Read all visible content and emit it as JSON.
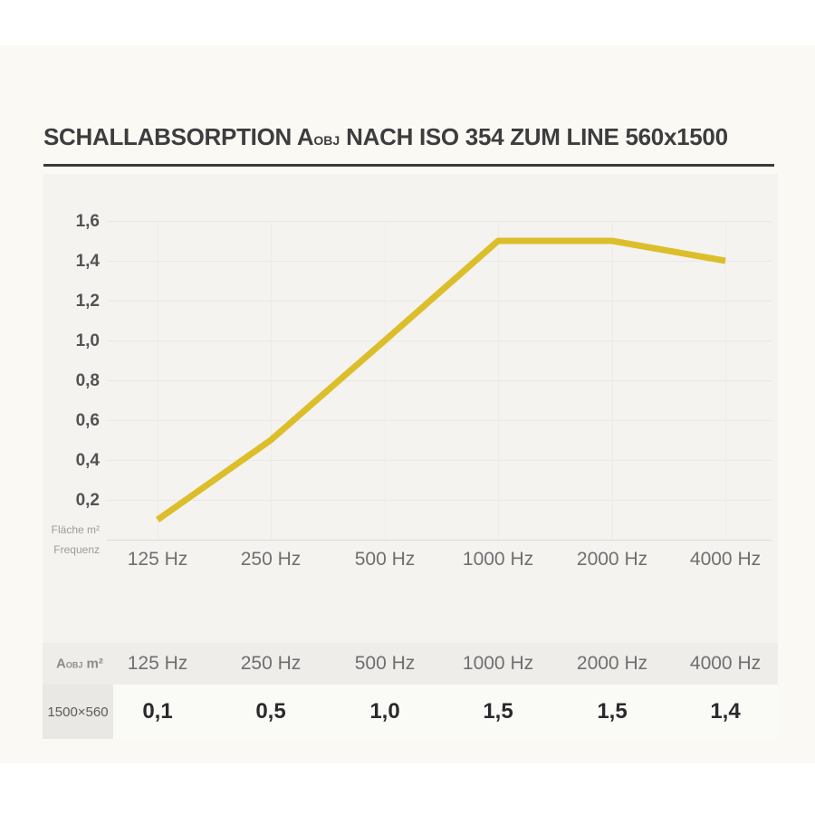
{
  "page": {
    "title_prefix": "SCHALLABSORPTION A",
    "title_sub": "OBJ",
    "title_suffix": " NACH ISO 354 ZUM LINE 560x1500"
  },
  "chart_data": {
    "type": "line",
    "title": "Schallabsorption Aobj nach ISO 354 zum LINE 560x1500",
    "categories": [
      "125 Hz",
      "250 Hz",
      "500 Hz",
      "1000 Hz",
      "2000 Hz",
      "4000 Hz"
    ],
    "series": [
      {
        "name": "Aobj m² (1500×560)",
        "values": [
          0.1,
          0.5,
          1.0,
          1.5,
          1.5,
          1.4
        ]
      }
    ],
    "xlabel": "Frequenz",
    "ylabel": "Fläche m²",
    "ylim": [
      0,
      1.6
    ],
    "ytick_labels": [
      "1,6",
      "1,4",
      "1,2",
      "1,0",
      "0,8",
      "0,6",
      "0,4",
      "0,2"
    ],
    "ytick_values": [
      1.6,
      1.4,
      1.2,
      1.0,
      0.8,
      0.6,
      0.4,
      0.2
    ],
    "grid": true,
    "legend_position": "none",
    "line_color": "#dcbe2b",
    "axis_caption_area": "Fläche m²",
    "axis_caption_freq": "Frequenz"
  },
  "table": {
    "header_label_prefix": "A",
    "header_label_sub": "OBJ",
    "header_label_suffix": " m²",
    "columns": [
      "125 Hz",
      "250 Hz",
      "500 Hz",
      "1000 Hz",
      "2000 Hz",
      "4000 Hz"
    ],
    "row_label": "1500×560",
    "values": [
      "0,1",
      "0,5",
      "1,0",
      "1,5",
      "1,5",
      "1,4"
    ]
  },
  "colors": {
    "page_background": "#ffffff",
    "content_background": "#fbf9f3",
    "chart_panel_background": "#f4f3f0",
    "table_header_background": "#eeede9",
    "table_label_cell_background": "#e9e8e5",
    "table_value_row_background": "#fafaf7",
    "line": "#dcbe2b",
    "title_text": "#3d3d3f"
  }
}
